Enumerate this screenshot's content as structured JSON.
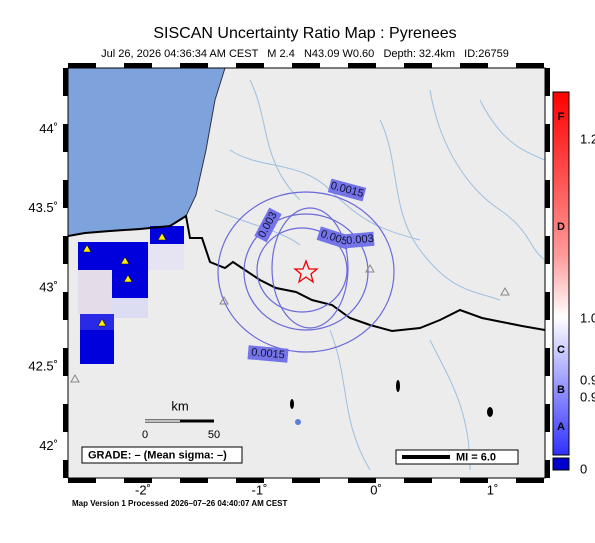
{
  "header": {
    "title": "SISCAN Uncertainty Ratio Map : Pyrenees",
    "subtitle": "Jul 26, 2026 04:36:34 AM CEST   M 2.4   N43.09 W0.60   Depth: 32.4km   ID:26759"
  },
  "map": {
    "lat_ticks": [
      {
        "value": 44,
        "label": "44˚"
      },
      {
        "value": 43.5,
        "label": "43.5˚"
      },
      {
        "value": 43,
        "label": "43˚"
      },
      {
        "value": 42.5,
        "label": "42.5˚"
      },
      {
        "value": 42,
        "label": "42˚"
      }
    ],
    "lon_ticks": [
      {
        "value": -2,
        "label": "-2˚"
      },
      {
        "value": -1,
        "label": "-1˚"
      },
      {
        "value": 0,
        "label": "0˚"
      },
      {
        "value": 1,
        "label": "1˚"
      }
    ],
    "contour_labels": [
      "0.0015",
      "0.003",
      "0.005",
      "0.003",
      "0.0015"
    ],
    "scale": {
      "unit": "km",
      "labels": [
        "0",
        "50"
      ]
    },
    "grade": "GRADE: – (Mean sigma: –)",
    "mi_legend": "MI = 6.0"
  },
  "colorbar": {
    "grades": [
      "F",
      "D",
      "C",
      "B",
      "A"
    ],
    "values": [
      "1.2",
      "1.0",
      "0.9",
      "0.9",
      "0"
    ]
  },
  "footer": "Map Version 1 Processed 2026–07–26 04:40:07 AM CEST"
}
